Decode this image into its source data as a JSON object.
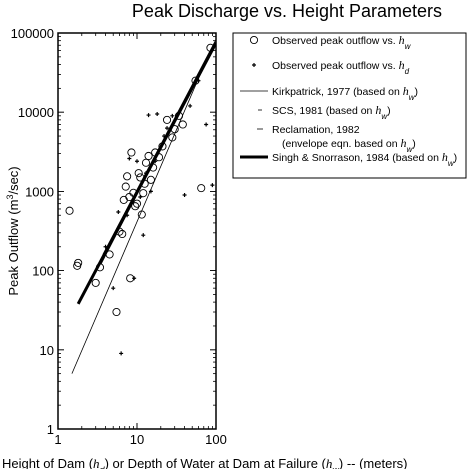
{
  "chart_data": {
    "type": "scatter",
    "title": "Peak Discharge vs. Height Parameters",
    "xlabel": {
      "pre": "Height of Dam (",
      "var1": "h",
      "sub1": "d",
      "mid": ") or Depth of Water at Dam at Failure (",
      "var2": "h",
      "sub2": "w",
      "post": ") -- (meters)"
    },
    "ylabel": {
      "pre": "Peak Outflow (m",
      "sup": "3",
      "post": "/sec)"
    },
    "x_scale": "log",
    "y_scale": "log",
    "xlim": [
      1,
      100
    ],
    "ylim": [
      1,
      100000
    ],
    "x_ticks": [
      "1",
      "10",
      "100"
    ],
    "y_ticks": [
      "1",
      "10",
      "100",
      "1000",
      "10000",
      "100000"
    ],
    "grid": false,
    "legend_position": "top-right",
    "legend": [
      {
        "key": "obs_hw",
        "text": "Observed peak outflow vs. ",
        "var": "h",
        "sub": "w"
      },
      {
        "key": "obs_hd",
        "text": "Observed peak outflow vs. ",
        "var": "h",
        "sub": "d"
      },
      {
        "key": "kirk",
        "text": "Kirkpatrick, 1977 (based on ",
        "var": "h",
        "sub": "w",
        "close": ")"
      },
      {
        "key": "scs",
        "text": "SCS, 1981 (based on ",
        "var": "h",
        "sub": "w",
        "close": ")"
      },
      {
        "key": "recl",
        "text": "Reclamation, 1982",
        "line2": "(envelope eqn. based on ",
        "var": "h",
        "sub": "w",
        "close": ")"
      },
      {
        "key": "singh",
        "text": "Singh & Snorrason, 1984 (based on ",
        "var": "h",
        "sub": "w",
        "close": ")"
      }
    ],
    "series": [
      {
        "name": "Observed peak outflow vs. hw",
        "marker": "open-circle",
        "points": [
          [
            1.4,
            570
          ],
          [
            1.75,
            115
          ],
          [
            1.8,
            125
          ],
          [
            3.0,
            70
          ],
          [
            3.4,
            110
          ],
          [
            4.5,
            160
          ],
          [
            5.5,
            30
          ],
          [
            6.0,
            310
          ],
          [
            6.5,
            290
          ],
          [
            6.8,
            780
          ],
          [
            7.2,
            1150
          ],
          [
            7.5,
            1550
          ],
          [
            8.0,
            850
          ],
          [
            8.2,
            80
          ],
          [
            8.5,
            3100
          ],
          [
            9.0,
            960
          ],
          [
            9.5,
            650
          ],
          [
            10,
            700
          ],
          [
            10.5,
            1700
          ],
          [
            11,
            1500
          ],
          [
            11.5,
            510
          ],
          [
            12,
            950
          ],
          [
            12.5,
            1250
          ],
          [
            13,
            2300
          ],
          [
            14,
            2800
          ],
          [
            15,
            1400
          ],
          [
            16,
            2000
          ],
          [
            17,
            3100
          ],
          [
            19,
            2700
          ],
          [
            21,
            3700
          ],
          [
            24,
            8000
          ],
          [
            28,
            4800
          ],
          [
            30,
            6100
          ],
          [
            34,
            9000
          ],
          [
            38,
            7000
          ],
          [
            55,
            25000
          ],
          [
            65,
            1100
          ],
          [
            85,
            65000
          ]
        ]
      },
      {
        "name": "Observed peak outflow vs. hd",
        "marker": "plus",
        "points": [
          [
            4.0,
            200
          ],
          [
            5.0,
            60
          ],
          [
            5.8,
            550
          ],
          [
            6.3,
            9
          ],
          [
            7.5,
            500
          ],
          [
            8.0,
            2600
          ],
          [
            9.2,
            80
          ],
          [
            10,
            2400
          ],
          [
            11,
            850
          ],
          [
            12,
            280
          ],
          [
            13,
            1700
          ],
          [
            14,
            9200
          ],
          [
            15,
            1000
          ],
          [
            17,
            2400
          ],
          [
            18,
            9500
          ],
          [
            22,
            5000
          ],
          [
            24,
            6300
          ],
          [
            28,
            9000
          ],
          [
            40,
            900
          ],
          [
            47,
            12000
          ],
          [
            60,
            25000
          ],
          [
            75,
            7000
          ],
          [
            90,
            1200
          ]
        ]
      }
    ],
    "lines": [
      {
        "name": "Kirkpatrick, 1977",
        "style": "thin-solid",
        "x": [
          1.5,
          85
        ],
        "y": [
          5,
          60000
        ]
      },
      {
        "name": "SCS, 1981",
        "style": "thin-solid",
        "x": [
          3.7,
          100
        ],
        "y": [
          160,
          83000
        ]
      },
      {
        "name": "Reclamation, 1982",
        "style": "thin-solid",
        "x": [
          3.5,
          100
        ],
        "y": [
          120,
          78000
        ]
      },
      {
        "name": "Singh & Snorrason, 1984",
        "style": "thick-solid",
        "x": [
          1.8,
          100
        ],
        "y": [
          38,
          75000
        ]
      }
    ]
  }
}
